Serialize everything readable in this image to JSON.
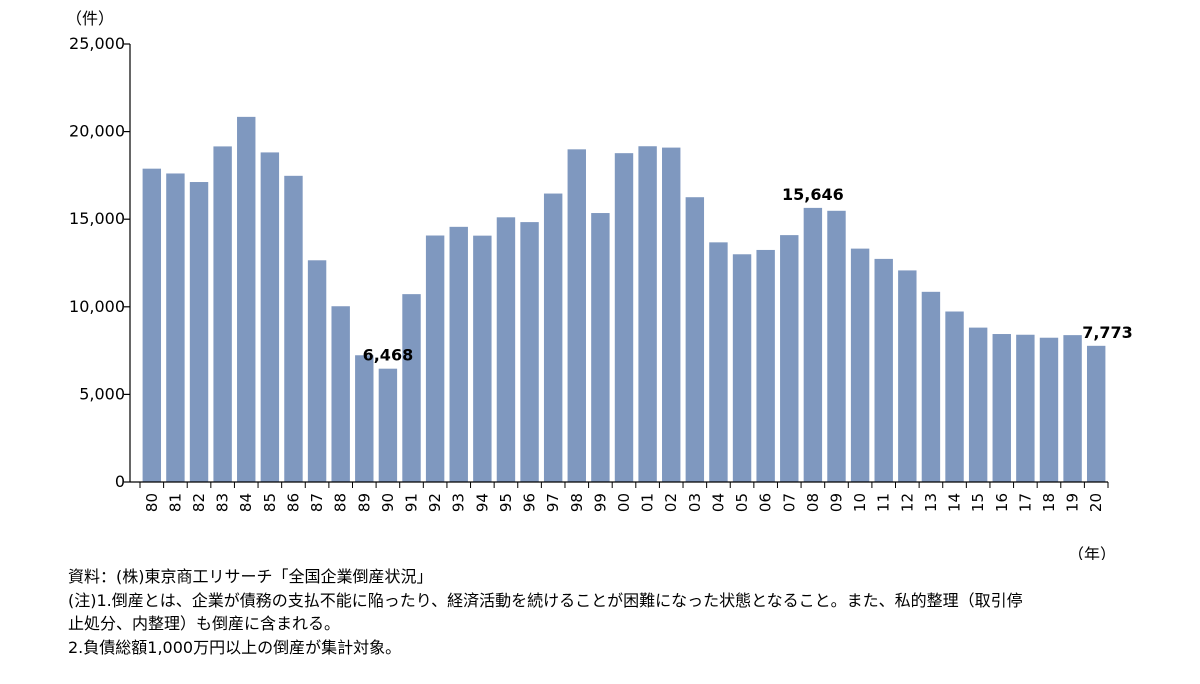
{
  "chart_data": {
    "type": "bar",
    "y_unit_label": "（件）",
    "x_unit_label": "（年）",
    "categories": [
      "80",
      "81",
      "82",
      "83",
      "84",
      "85",
      "86",
      "87",
      "88",
      "89",
      "90",
      "91",
      "92",
      "93",
      "94",
      "95",
      "96",
      "97",
      "98",
      "99",
      "00",
      "01",
      "02",
      "03",
      "04",
      "05",
      "06",
      "07",
      "08",
      "09",
      "10",
      "11",
      "12",
      "13",
      "14",
      "15",
      "16",
      "17",
      "18",
      "19",
      "20"
    ],
    "values": [
      17884,
      17610,
      17122,
      19155,
      20841,
      18812,
      17476,
      12655,
      10032,
      7234,
      6468,
      10723,
      14069,
      14564,
      14061,
      15108,
      14834,
      16464,
      18988,
      15352,
      18769,
      19164,
      19087,
      16255,
      13679,
      12998,
      13245,
      14091,
      15646,
      15480,
      13321,
      12734,
      12077,
      10855,
      9731,
      8812,
      8446,
      8405,
      8235,
      8383,
      7773
    ],
    "ylim": [
      0,
      25000
    ],
    "yticks": [
      "0",
      "5,000",
      "10,000",
      "15,000",
      "20,000",
      "25,000"
    ],
    "data_labels": [
      {
        "category": "90",
        "text": "6,468"
      },
      {
        "category": "08",
        "text": "15,646"
      },
      {
        "category": "20",
        "text": "7,773"
      }
    ],
    "bar_color": "#7f98bf",
    "grid": false
  },
  "notes": {
    "source": "資料：(株)東京商工リサーチ「全国企業倒産状況」",
    "note1_line1": "(注)1.倒産とは、企業が債務の支払不能に陥ったり、経済活動を続けることが困難になった状態となること。また、私的整理（取引停",
    "note1_line2": "止処分、内整理）も倒産に含まれる。",
    "note2": "2.負債総額1,000万円以上の倒産が集計対象。"
  }
}
